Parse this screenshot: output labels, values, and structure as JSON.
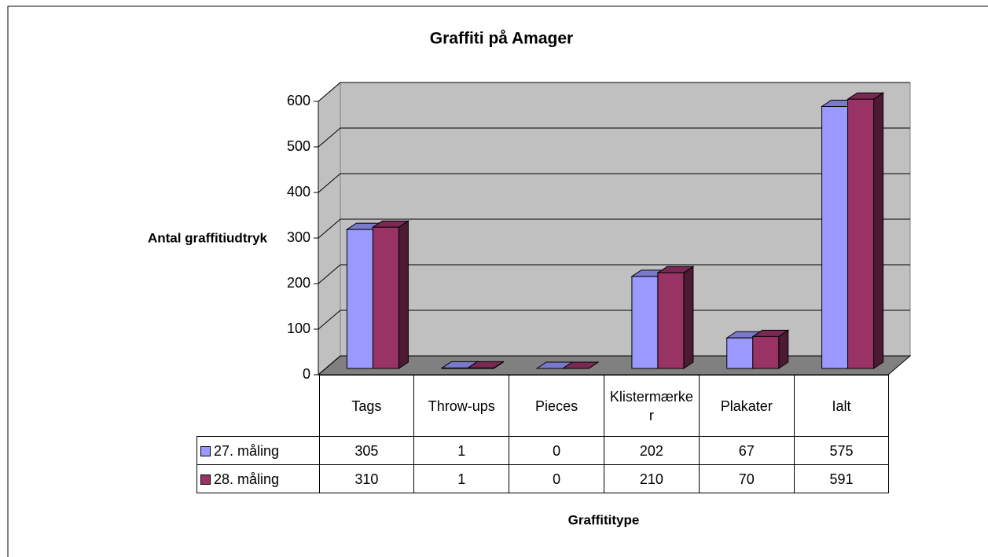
{
  "chart_data": {
    "type": "bar3d",
    "title": "Graffiti på Amager",
    "ylabel": "Antal graffitiudtryk",
    "xlabel": "Graffititype",
    "categories": [
      "Tags",
      "Throw-ups",
      "Pieces",
      "Klistermærker",
      "Plakater",
      "Ialt"
    ],
    "series": [
      {
        "name": "27. måling",
        "color": "#9999ff",
        "values": [
          305,
          1,
          0,
          202,
          67,
          575
        ]
      },
      {
        "name": "28. måling",
        "color": "#993366",
        "values": [
          310,
          1,
          0,
          210,
          70,
          591
        ]
      }
    ],
    "ylim": [
      0,
      600
    ],
    "yticks": [
      0,
      100,
      200,
      300,
      400,
      500,
      600
    ],
    "grid": true,
    "data_table": true
  }
}
